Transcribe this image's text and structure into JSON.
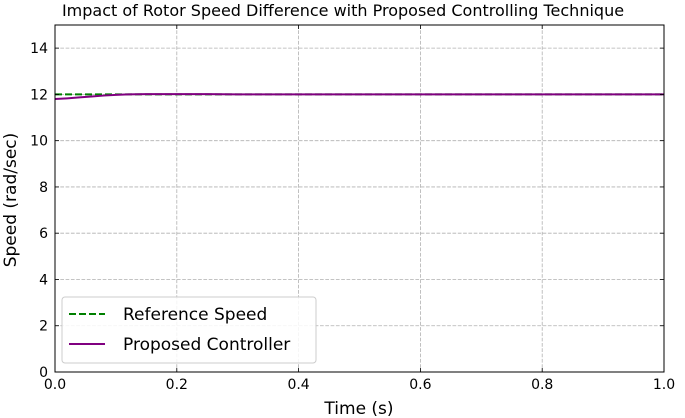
{
  "chart_data": {
    "type": "line",
    "title": "Impact of Rotor Speed Difference with Proposed Controlling Technique",
    "xlabel": "Time (s)",
    "ylabel": "Speed (rad/sec)",
    "xlim": [
      0,
      1.0
    ],
    "ylim": [
      0,
      15
    ],
    "x_ticks": [
      0.0,
      0.2,
      0.4,
      0.6,
      0.8,
      1.0
    ],
    "x_tick_labels": [
      "0.0",
      "0.2",
      "0.4",
      "0.6",
      "0.8",
      "1.0"
    ],
    "y_ticks": [
      0,
      2,
      4,
      6,
      8,
      10,
      12,
      14
    ],
    "y_tick_labels": [
      "0",
      "2",
      "4",
      "6",
      "8",
      "10",
      "12",
      "14"
    ],
    "grid": true,
    "legend_position": "lower-left",
    "series": [
      {
        "name": "Reference Speed",
        "style": "dashed",
        "color": "#008000",
        "x": [
          0.0,
          1.0
        ],
        "y": [
          12.0,
          12.0
        ]
      },
      {
        "name": "Proposed Controller",
        "style": "solid",
        "color": "#800080",
        "x": [
          0.0,
          0.02,
          0.04,
          0.06,
          0.08,
          0.1,
          0.12,
          0.15,
          0.2,
          0.25,
          0.3,
          0.4,
          0.5,
          0.6,
          0.7,
          0.8,
          0.9,
          1.0
        ],
        "y": [
          11.8,
          11.83,
          11.87,
          11.91,
          11.95,
          11.98,
          12.0,
          12.01,
          12.01,
          12.01,
          12.0,
          12.0,
          12.0,
          12.0,
          12.0,
          12.0,
          12.0,
          12.0
        ]
      }
    ]
  }
}
